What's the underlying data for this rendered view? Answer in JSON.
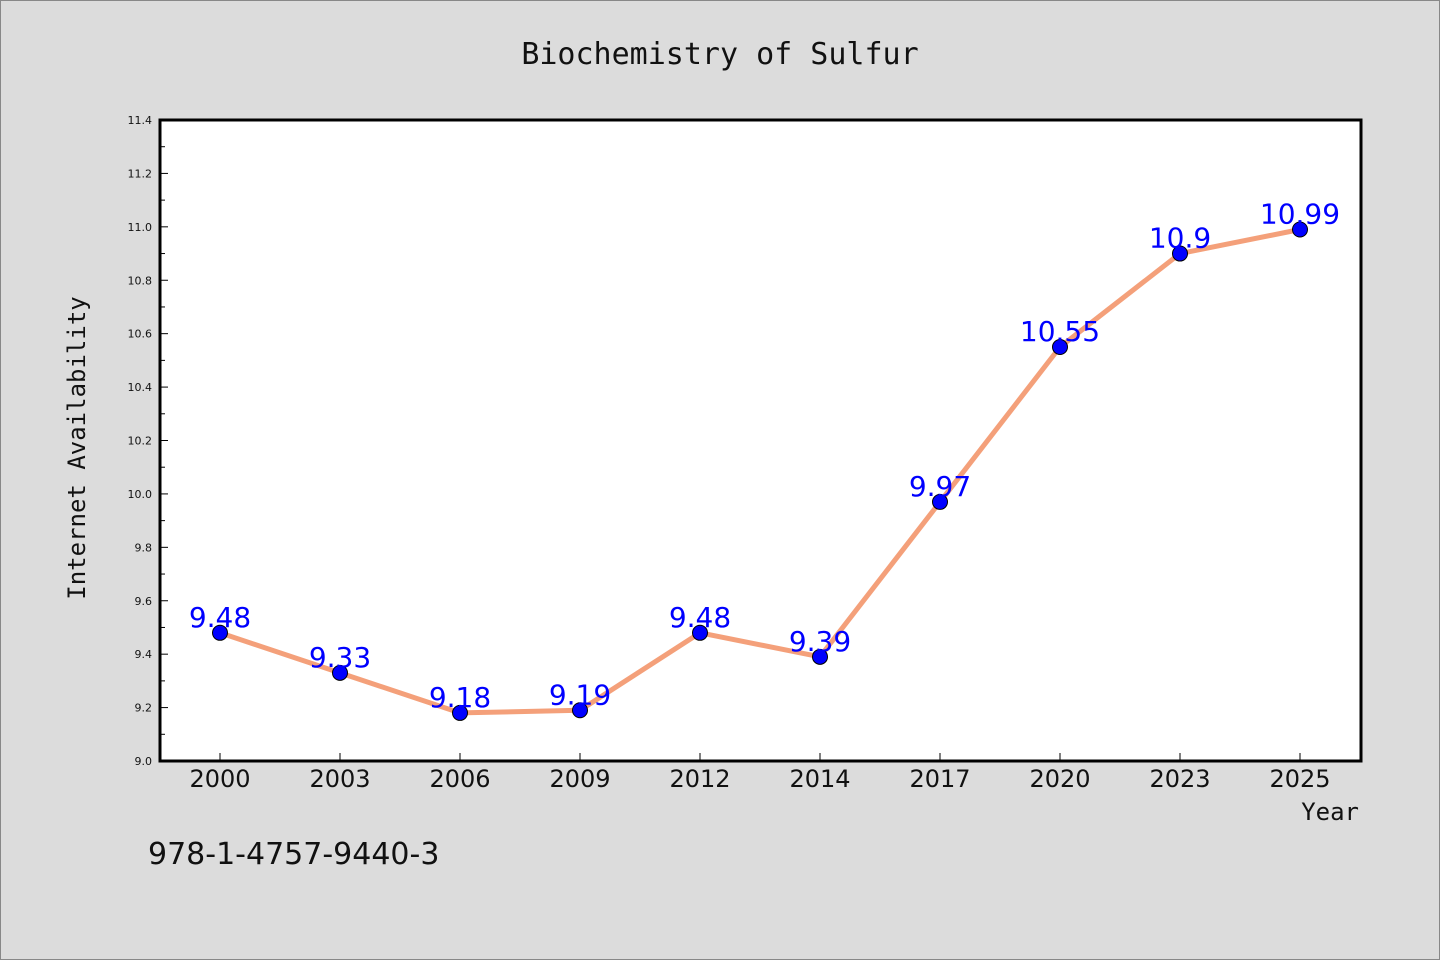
{
  "chart_data": {
    "type": "line",
    "title": "Biochemistry of Sulfur",
    "xlabel": "Year",
    "ylabel": "Internet Availability",
    "categories": [
      "2000",
      "2003",
      "2006",
      "2009",
      "2012",
      "2014",
      "2017",
      "2020",
      "2023",
      "2025"
    ],
    "values": [
      9.48,
      9.33,
      9.18,
      9.19,
      9.48,
      9.39,
      9.97,
      10.55,
      10.9,
      10.99
    ],
    "data_labels": [
      "9.48",
      "9.33",
      "9.18",
      "9.19",
      "9.48",
      "9.39",
      "9.97",
      "10.55",
      "10.9",
      "10.99"
    ],
    "ylim": [
      9.0,
      11.4
    ],
    "yticks": [
      "9.0",
      "9.2",
      "9.4",
      "9.6",
      "9.8",
      "10.0",
      "10.2",
      "10.4",
      "10.6",
      "10.8",
      "11.0",
      "11.2",
      "11.4"
    ],
    "grid": false,
    "line_color": "#f4a07a",
    "marker_color": "#0000ff",
    "label_color": "#0000ff",
    "background_color": "#dcdcdc",
    "plot_background": "#ffffff"
  },
  "annotation": "978-1-4757-9440-3"
}
